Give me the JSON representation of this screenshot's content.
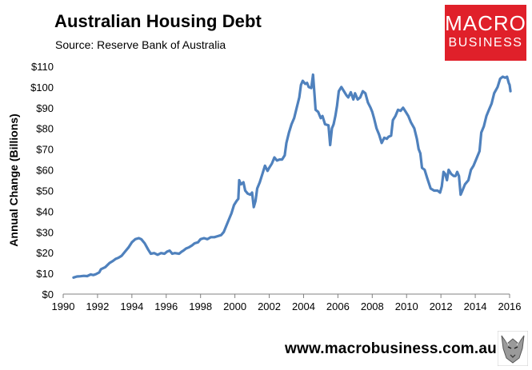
{
  "header": {
    "title": "Australian Housing Debt",
    "subtitle": "Source: Reserve Bank of Australia"
  },
  "logo": {
    "line1": "MACRO",
    "line2": "BUSINESS",
    "color": "#e0202a",
    "icon": "macrobusiness-wolf-logo-icon"
  },
  "footer": {
    "url": "www.macrobusiness.com.au"
  },
  "chart_data": {
    "type": "line",
    "title": "Australian Housing Debt",
    "subtitle": "Source: Reserve Bank of Australia",
    "xlabel": "",
    "ylabel": "Annual Change (Billions)",
    "xlim": [
      1990,
      2016
    ],
    "ylim": [
      0,
      110
    ],
    "x_ticks": [
      1990,
      1992,
      1994,
      1996,
      1998,
      2000,
      2002,
      2004,
      2006,
      2008,
      2010,
      2012,
      2014,
      2016
    ],
    "y_ticks": [
      0,
      10,
      20,
      30,
      40,
      50,
      60,
      70,
      80,
      90,
      100,
      110
    ],
    "y_tick_labels": [
      "$0",
      "$10",
      "$20",
      "$30",
      "$40",
      "$50",
      "$60",
      "$70",
      "$80",
      "$90",
      "$100",
      "$110"
    ],
    "grid": false,
    "legend": "none",
    "series": [
      {
        "color": "#4f81bd",
        "points": [
          [
            1990.6,
            8
          ],
          [
            1990.8,
            8.5
          ],
          [
            1991.0,
            8.6
          ],
          [
            1991.2,
            8.8
          ],
          [
            1991.4,
            8.7
          ],
          [
            1991.6,
            9.5
          ],
          [
            1991.75,
            9.2
          ],
          [
            1991.9,
            9.6
          ],
          [
            1992.1,
            10.5
          ],
          [
            1992.2,
            12
          ],
          [
            1992.45,
            13
          ],
          [
            1992.7,
            15
          ],
          [
            1992.9,
            16
          ],
          [
            1993.05,
            17
          ],
          [
            1993.2,
            17.5
          ],
          [
            1993.4,
            18.5
          ],
          [
            1993.6,
            20.5
          ],
          [
            1993.8,
            22.5
          ],
          [
            1994.0,
            25
          ],
          [
            1994.2,
            26.5
          ],
          [
            1994.4,
            27
          ],
          [
            1994.55,
            26.5
          ],
          [
            1994.75,
            24.5
          ],
          [
            1994.95,
            21.5
          ],
          [
            1995.1,
            19.5
          ],
          [
            1995.3,
            19.8
          ],
          [
            1995.5,
            19
          ],
          [
            1995.7,
            19.8
          ],
          [
            1995.9,
            19.5
          ],
          [
            1996.05,
            20.5
          ],
          [
            1996.2,
            21
          ],
          [
            1996.35,
            19.5
          ],
          [
            1996.5,
            19.8
          ],
          [
            1996.75,
            19.5
          ],
          [
            1996.9,
            20.5
          ],
          [
            1997.0,
            21
          ],
          [
            1997.15,
            22
          ],
          [
            1997.3,
            22.5
          ],
          [
            1997.5,
            23.5
          ],
          [
            1997.65,
            24.5
          ],
          [
            1997.85,
            25
          ],
          [
            1998.0,
            26.5
          ],
          [
            1998.2,
            27
          ],
          [
            1998.4,
            26.5
          ],
          [
            1998.6,
            27.5
          ],
          [
            1998.8,
            27.5
          ],
          [
            1999.0,
            28
          ],
          [
            1999.2,
            28.5
          ],
          [
            1999.35,
            30
          ],
          [
            1999.5,
            33
          ],
          [
            1999.65,
            36
          ],
          [
            1999.8,
            39
          ],
          [
            1999.95,
            43
          ],
          [
            2000.1,
            45
          ],
          [
            2000.2,
            46
          ],
          [
            2000.25,
            55
          ],
          [
            2000.35,
            53
          ],
          [
            2000.5,
            54
          ],
          [
            2000.6,
            50
          ],
          [
            2000.75,
            48.5
          ],
          [
            2000.9,
            48
          ],
          [
            2001.0,
            49
          ],
          [
            2001.1,
            42
          ],
          [
            2001.2,
            45
          ],
          [
            2001.3,
            51
          ],
          [
            2001.45,
            54
          ],
          [
            2001.6,
            58
          ],
          [
            2001.75,
            62
          ],
          [
            2001.9,
            59.5
          ],
          [
            2002.0,
            61
          ],
          [
            2002.15,
            63
          ],
          [
            2002.3,
            66
          ],
          [
            2002.45,
            64.5
          ],
          [
            2002.6,
            65
          ],
          [
            2002.75,
            65
          ],
          [
            2002.9,
            67
          ],
          [
            2003.0,
            73
          ],
          [
            2003.15,
            78
          ],
          [
            2003.3,
            82
          ],
          [
            2003.45,
            85
          ],
          [
            2003.6,
            90
          ],
          [
            2003.75,
            95
          ],
          [
            2003.85,
            101
          ],
          [
            2003.95,
            103
          ],
          [
            2004.1,
            101.5
          ],
          [
            2004.2,
            102
          ],
          [
            2004.3,
            100
          ],
          [
            2004.45,
            99.5
          ],
          [
            2004.55,
            106
          ],
          [
            2004.65,
            95
          ],
          [
            2004.7,
            89
          ],
          [
            2004.85,
            88
          ],
          [
            2005.0,
            85
          ],
          [
            2005.1,
            86
          ],
          [
            2005.25,
            82
          ],
          [
            2005.45,
            81.5
          ],
          [
            2005.55,
            72
          ],
          [
            2005.65,
            80
          ],
          [
            2005.75,
            82
          ],
          [
            2005.85,
            86
          ],
          [
            2005.95,
            91
          ],
          [
            2006.05,
            98
          ],
          [
            2006.2,
            100
          ],
          [
            2006.35,
            98
          ],
          [
            2006.5,
            96
          ],
          [
            2006.6,
            95
          ],
          [
            2006.75,
            97.5
          ],
          [
            2006.9,
            94
          ],
          [
            2007.0,
            97
          ],
          [
            2007.15,
            94
          ],
          [
            2007.3,
            95
          ],
          [
            2007.45,
            98
          ],
          [
            2007.6,
            97
          ],
          [
            2007.75,
            92.5
          ],
          [
            2007.9,
            90
          ],
          [
            2008.0,
            88
          ],
          [
            2008.1,
            85
          ],
          [
            2008.25,
            80
          ],
          [
            2008.4,
            77
          ],
          [
            2008.55,
            73
          ],
          [
            2008.7,
            75.5
          ],
          [
            2008.85,
            75
          ],
          [
            2008.95,
            76
          ],
          [
            2009.1,
            76.5
          ],
          [
            2009.2,
            84
          ],
          [
            2009.35,
            86
          ],
          [
            2009.5,
            89
          ],
          [
            2009.65,
            88.5
          ],
          [
            2009.8,
            90
          ],
          [
            2009.95,
            88
          ],
          [
            2010.1,
            86
          ],
          [
            2010.25,
            83
          ],
          [
            2010.45,
            80
          ],
          [
            2010.6,
            75
          ],
          [
            2010.7,
            70
          ],
          [
            2010.8,
            68
          ],
          [
            2010.9,
            61
          ],
          [
            2011.05,
            60
          ],
          [
            2011.2,
            56
          ],
          [
            2011.4,
            51
          ],
          [
            2011.6,
            50
          ],
          [
            2011.8,
            50
          ],
          [
            2011.95,
            49
          ],
          [
            2012.05,
            52
          ],
          [
            2012.15,
            59
          ],
          [
            2012.25,
            58
          ],
          [
            2012.35,
            55
          ],
          [
            2012.45,
            60
          ],
          [
            2012.6,
            58
          ],
          [
            2012.75,
            57
          ],
          [
            2012.85,
            57
          ],
          [
            2012.95,
            59
          ],
          [
            2013.05,
            57
          ],
          [
            2013.15,
            48
          ],
          [
            2013.25,
            50
          ],
          [
            2013.4,
            53
          ],
          [
            2013.6,
            55
          ],
          [
            2013.75,
            60
          ],
          [
            2013.9,
            62
          ],
          [
            2014.1,
            66
          ],
          [
            2014.25,
            69
          ],
          [
            2014.35,
            78
          ],
          [
            2014.5,
            81
          ],
          [
            2014.65,
            86
          ],
          [
            2014.8,
            89
          ],
          [
            2014.95,
            92
          ],
          [
            2015.1,
            97
          ],
          [
            2015.3,
            100
          ],
          [
            2015.45,
            104
          ],
          [
            2015.6,
            105
          ],
          [
            2015.75,
            104.5
          ],
          [
            2015.85,
            105
          ],
          [
            2015.95,
            102
          ],
          [
            2016.0,
            101
          ],
          [
            2016.05,
            98
          ]
        ]
      }
    ]
  }
}
